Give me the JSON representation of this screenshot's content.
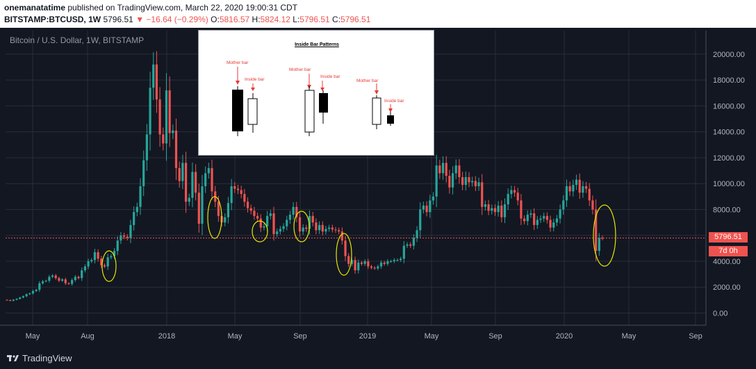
{
  "header": {
    "author": "onemanatatime",
    "published": "published on TradingView.com, March 22, 2020 19:00:31 CDT",
    "symbol": "BITSTAMP:BTCUSD, 1W",
    "last": "5796.51",
    "change": "▼ −16.64 (−0.29%)",
    "o_label": "O:",
    "o_value": "5816.57",
    "h_label": "H:",
    "h_value": "5824.12",
    "l_label": "L:",
    "l_value": "5796.51",
    "c_label": "C:",
    "c_value": "5796.51"
  },
  "chart_title": "Bitcoin / U.S. Dollar, 1W, BITSTAMP",
  "price_tag": "5796.51",
  "countdown_tag": "7d 0h",
  "footer": {
    "brand": "TradingView"
  },
  "inset": {
    "title": "Inside Bar Patterns",
    "labels": {
      "p1_mother": "Mother bar",
      "p1_inside": "Inside bar",
      "p2_mother": "Mother bar",
      "p2_inside": "Inside bar",
      "p3_mother": "Mother bar",
      "p3_inside": "Inside bar"
    }
  },
  "colors": {
    "up": "#26a69a",
    "down": "#ef5350",
    "bg": "#131722",
    "grid": "#2a2e39",
    "highlight": "#e6e600"
  },
  "chart_data": {
    "type": "candlestick",
    "title": "Bitcoin / U.S. Dollar, 1W, BITSTAMP",
    "ylim": [
      -1000,
      21000
    ],
    "y_ticks": [
      "20000.00",
      "18000.00",
      "16000.00",
      "14000.00",
      "12000.00",
      "10000.00",
      "8000.00",
      "6000.00",
      "4000.00",
      "2000.00",
      "0.00"
    ],
    "x_ticks": [
      "May",
      "Aug",
      "2018",
      "May",
      "Sep",
      "2019",
      "May",
      "Sep",
      "2020",
      "May",
      "Sep"
    ],
    "last_price": 5796.51,
    "grid": true,
    "series_close": [
      1000,
      950,
      1030,
      1100,
      1200,
      1300,
      1450,
      1520,
      1700,
      1800,
      2300,
      2450,
      2500,
      2800,
      2900,
      2700,
      2500,
      2600,
      2300,
      2250,
      2550,
      2800,
      2700,
      3300,
      3600,
      4000,
      4100,
      4700,
      4200,
      3700,
      3600,
      4300,
      4400,
      4800,
      5600,
      6000,
      5900,
      5800,
      6800,
      7800,
      8200,
      9800,
      11800,
      13800,
      17400,
      19200,
      16500,
      13800,
      13100,
      17200,
      13900,
      14100,
      11200,
      10200,
      11600,
      8600,
      8900,
      10900,
      9300,
      6900,
      9800,
      10800,
      11200,
      9400,
      8600,
      7500,
      7000,
      7400,
      8500,
      9800,
      9600,
      9500,
      9200,
      8600,
      8100,
      7900,
      7500,
      7300,
      6600,
      6700,
      7500,
      7700,
      6100,
      6300,
      6500,
      6700,
      7200,
      7600,
      8200,
      7400,
      6300,
      6600,
      6500,
      7500,
      7000,
      6400,
      6800,
      6300,
      6500,
      6600,
      6450,
      6400,
      6300,
      5600,
      4400,
      3800,
      4100,
      3300,
      3900,
      3800,
      4000,
      3600,
      3500,
      3450,
      3600,
      3900,
      3800,
      4000,
      4000,
      4100,
      4100,
      4200,
      5200,
      5300,
      5200,
      5800,
      6400,
      8000,
      8300,
      7800,
      8700,
      9000,
      11400,
      10800,
      11600,
      10600,
      9700,
      10800,
      11400,
      10500,
      9900,
      10500,
      10100,
      10200,
      9800,
      10100,
      8200,
      8400,
      7900,
      8100,
      7800,
      8300,
      7400,
      8400,
      9200,
      9500,
      9300,
      8700,
      7300,
      7100,
      7600,
      7700,
      6800,
      7200,
      7300,
      7500,
      7200,
      6600,
      7000,
      7300,
      8000,
      8700,
      9800,
      9400,
      9900,
      10300,
      9300,
      9800,
      9600,
      8700,
      8000,
      4800,
      5800,
      5797
    ]
  }
}
